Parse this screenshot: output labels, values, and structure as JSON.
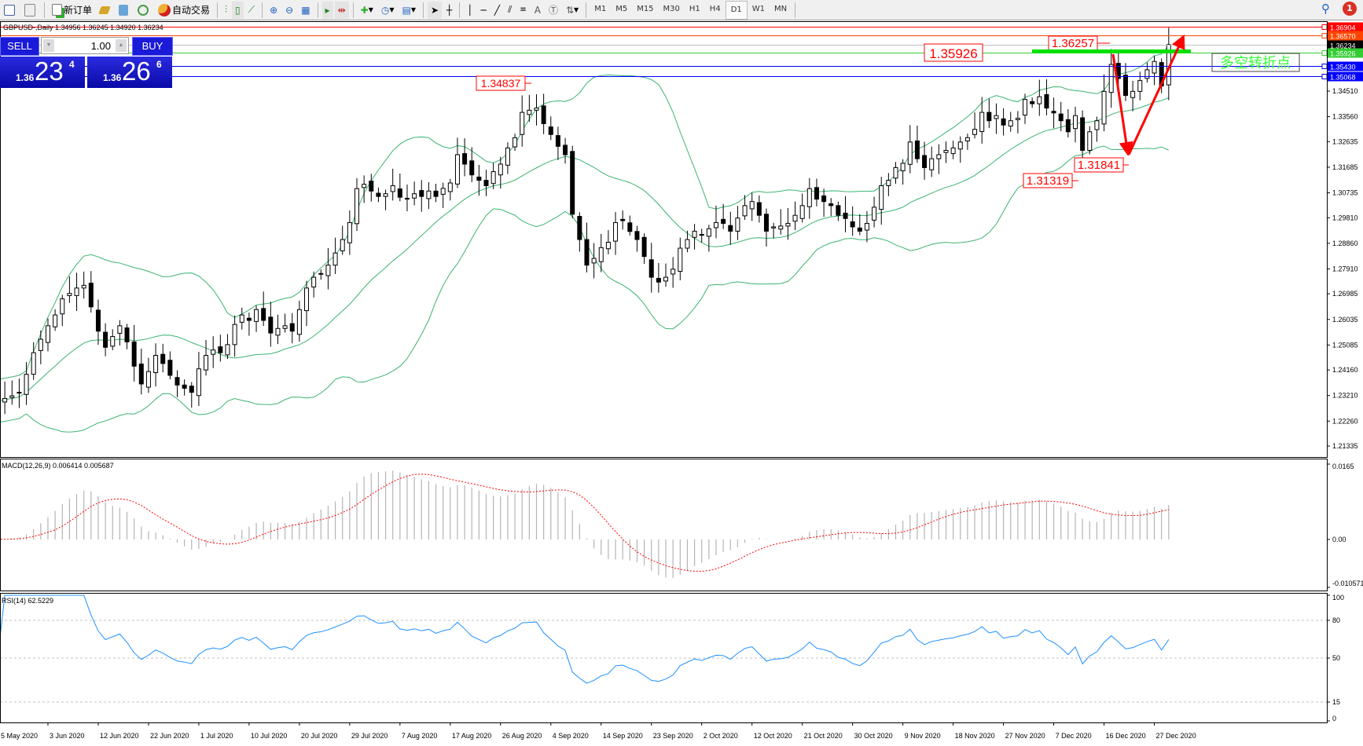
{
  "toolbar": {
    "new_order": "新订单",
    "auto_trade": "自动交易",
    "timeframes": [
      "M1",
      "M5",
      "M15",
      "M30",
      "H1",
      "H4",
      "D1",
      "W1",
      "MN"
    ],
    "active_timeframe": "D1",
    "notification_count": "1"
  },
  "chart": {
    "symbol_info": "GBPUSD-,Daily  1.34956 1.36245 1.34920 1.36234"
  },
  "trade_panel": {
    "sell_label": "SELL",
    "buy_label": "BUY",
    "volume": "1.00",
    "bid": {
      "prefix": "1.36",
      "big": "23",
      "sup": "4"
    },
    "ask": {
      "prefix": "1.36",
      "big": "26",
      "sup": "6"
    }
  },
  "colors": {
    "bands": "#3cb371",
    "rsi": "#1e90ff",
    "macd_signal": "#ff0000",
    "macd_hist": "#b4b4b4",
    "annotation": "#ff0000",
    "pivot_line": "#00e000"
  },
  "chart_data": {
    "type": "candlestick",
    "symbol": "GBPUSD-",
    "timeframe": "Daily",
    "closes": [
      1.2301,
      1.231,
      1.232,
      1.2333,
      1.24,
      1.248,
      1.253,
      1.258,
      1.262,
      1.268,
      1.27,
      1.272,
      1.273,
      1.265,
      1.256,
      1.25,
      1.254,
      1.258,
      1.252,
      1.243,
      1.2364,
      1.241,
      1.247,
      1.244,
      1.2396,
      1.236,
      1.2348,
      1.2333,
      1.242,
      1.247,
      1.249,
      1.248,
      1.251,
      1.2585,
      1.262,
      1.26,
      1.264,
      1.26,
      1.2553,
      1.257,
      1.258,
      1.256,
      1.264,
      1.272,
      1.276,
      1.2774,
      1.2805,
      1.285,
      1.29,
      1.2963,
      1.3089,
      1.3105,
      1.308,
      1.306,
      1.307,
      1.31,
      1.3057,
      1.305,
      1.307,
      1.306,
      1.308,
      1.306,
      1.309,
      1.311,
      1.3215,
      1.318,
      1.314,
      1.312,
      1.31,
      1.3152,
      1.318,
      1.324,
      1.3278,
      1.3372,
      1.338,
      1.3388,
      1.333,
      1.329,
      1.3246,
      1.3215,
      1.2994,
      1.29,
      1.2805,
      1.283,
      1.287,
      1.289,
      1.2963,
      1.297,
      1.293,
      1.29,
      1.2837,
      1.276,
      1.2742,
      1.276,
      1.279,
      1.2868,
      1.29,
      1.2931,
      1.2916,
      1.294,
      1.2963,
      1.296,
      1.2931,
      1.298,
      1.3026,
      1.3041,
      1.299,
      1.2931,
      1.2947,
      1.295,
      1.296,
      1.299,
      1.3026,
      1.3089,
      1.305,
      1.3041,
      1.3026,
      1.299,
      1.2978,
      1.2947,
      1.2931,
      1.296,
      1.302,
      1.31,
      1.312,
      1.3167,
      1.3183,
      1.3262,
      1.32,
      1.3167,
      1.32,
      1.3215,
      1.3231,
      1.324,
      1.3262,
      1.3278,
      1.3309,
      1.3372,
      1.3341,
      1.336,
      1.3325,
      1.3341,
      1.335,
      1.342,
      1.3404,
      1.343,
      1.3388,
      1.337,
      1.3341,
      1.33,
      1.336,
      1.3231,
      1.33,
      1.3341,
      1.345,
      1.355,
      1.3498,
      1.3435,
      1.345,
      1.349,
      1.353,
      1.3561,
      1.347,
      1.36234
    ],
    "price_ticks": [
      "1.34510",
      "1.33560",
      "1.32635",
      "1.31685",
      "1.30735",
      "1.29810",
      "1.28860",
      "1.27910",
      "1.26985",
      "1.26035",
      "1.25085",
      "1.24160",
      "1.23210",
      "1.22260",
      "1.21335"
    ],
    "date_labels": [
      "5 May 2020",
      "3 Jun 2020",
      "12 Jun 2020",
      "22 Jun 2020",
      "1 Jul 2020",
      "10 Jul 2020",
      "20 Jul 2020",
      "29 Jul 2020",
      "7 Aug 2020",
      "17 Aug 2020",
      "26 Aug 2020",
      "4 Sep 2020",
      "14 Sep 2020",
      "23 Sep 2020",
      "2 Oct 2020",
      "12 Oct 2020",
      "21 Oct 2020",
      "30 Oct 2020",
      "9 Nov 2020",
      "18 Nov 2020",
      "27 Nov 2020",
      "7 Dec 2020",
      "16 Dec 2020",
      "27 Dec 2020"
    ],
    "hlines": [
      {
        "price": "1.36904",
        "color": "#ff0000"
      },
      {
        "price": "1.36570",
        "color": "#ff4500"
      },
      {
        "price": "1.36234",
        "color": "#000000",
        "line": "#c0c0c0"
      },
      {
        "price": "1.35926",
        "color": "#32cd32"
      },
      {
        "price": "1.35430",
        "color": "#0000ff"
      },
      {
        "price": "1.35068",
        "color": "#0000ff"
      }
    ],
    "price_labels": [
      "1.34837",
      "1.35926",
      "1.36257",
      "1.31841",
      "1.31319"
    ],
    "pivot_text": "多空转折点",
    "indicators": {
      "bollinger": {
        "period": 20,
        "deviation": 2
      },
      "macd": {
        "label": "MACD(12,26,9) 0.006414 0.005687",
        "ticks": [
          "0.0165",
          "0.00",
          "-0.010571"
        ]
      },
      "rsi": {
        "label": "RSI(14) 62.5229",
        "ticks": [
          "100",
          "80",
          "50",
          "15",
          "0"
        ],
        "levels": [
          80,
          50,
          15
        ]
      }
    }
  }
}
